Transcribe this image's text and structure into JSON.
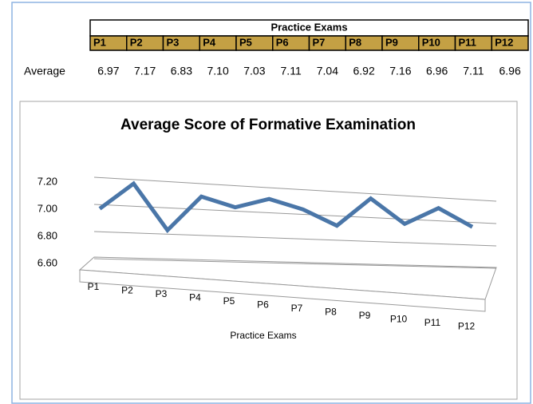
{
  "table": {
    "title": "Practice Exams",
    "headers": [
      "P1",
      "P2",
      "P3",
      "P4",
      "P5",
      "P6",
      "P7",
      "P8",
      "P9",
      "P10",
      "P11",
      "P12"
    ],
    "row_label": "Average",
    "values": [
      "6.97",
      "7.17",
      "6.83",
      "7.10",
      "7.03",
      "7.11",
      "7.04",
      "6.92",
      "7.16",
      "6.96",
      "7.11",
      "6.96"
    ]
  },
  "chart_data": {
    "type": "line",
    "title": "Average Score of Formative Examination",
    "x_label": "Practice Exams",
    "categories": [
      "P1",
      "P2",
      "P3",
      "P4",
      "P5",
      "P6",
      "P7",
      "P8",
      "P9",
      "P10",
      "P11",
      "P12"
    ],
    "values": [
      6.97,
      7.17,
      6.83,
      7.1,
      7.03,
      7.11,
      7.04,
      6.92,
      7.16,
      6.96,
      7.11,
      6.96
    ],
    "color": "#4a76a8",
    "ylim": [
      6.6,
      7.2
    ],
    "yticks": [
      {
        "value": 6.6,
        "label": "6.60"
      },
      {
        "value": 6.8,
        "label": "6.80"
      },
      {
        "value": 7.0,
        "label": "7.00"
      },
      {
        "value": 7.2,
        "label": "7.20"
      }
    ],
    "grid": true
  }
}
